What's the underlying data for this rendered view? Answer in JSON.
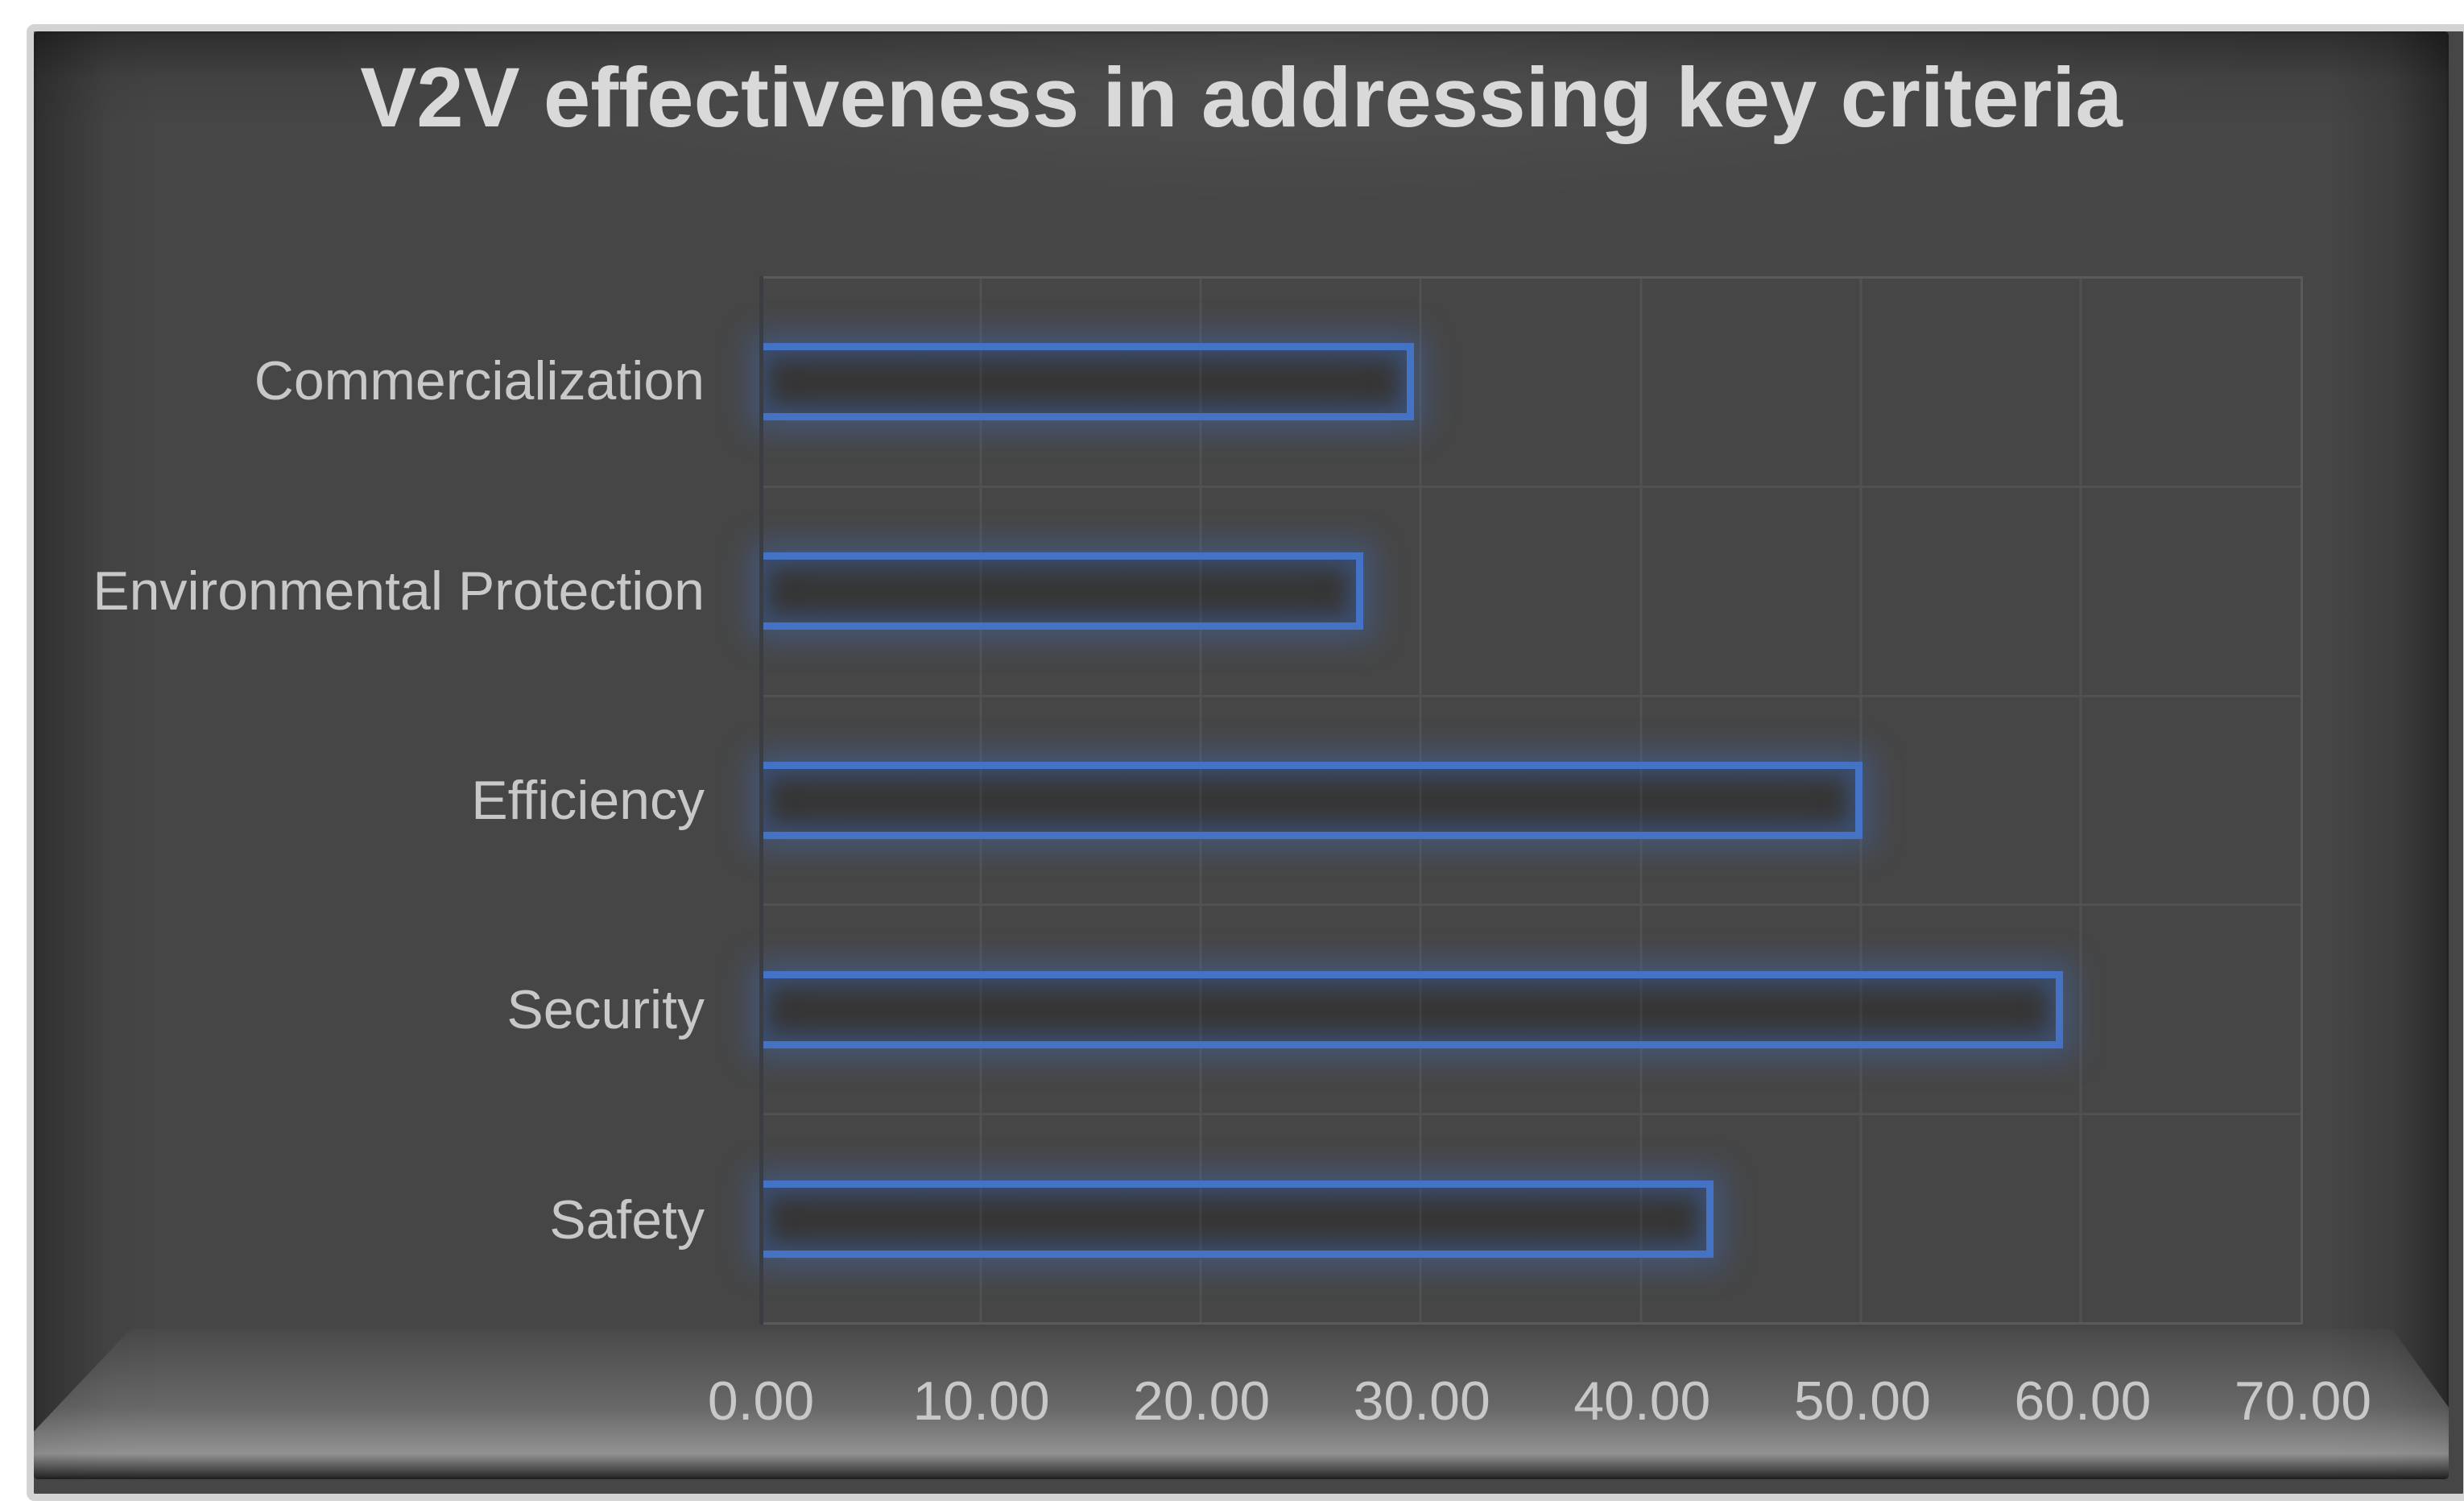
{
  "chart_data": {
    "type": "bar",
    "orientation": "horizontal",
    "title": "V2V effectiveness in addressing key criteria",
    "categories": [
      "Commercialization",
      "Environmental Protection",
      "Efficiency",
      "Security",
      "Safety"
    ],
    "values": [
      29.7,
      27.4,
      50.1,
      59.2,
      43.3
    ],
    "xlabel": "",
    "ylabel": "",
    "xlim": [
      0,
      70
    ],
    "x_tick_step": 10,
    "x_ticks": [
      "0.00",
      "10.00",
      "20.00",
      "30.00",
      "40.00",
      "50.00",
      "60.00",
      "70.00"
    ],
    "grid": true,
    "legend": false,
    "colors": {
      "bar_border": "#4472c4",
      "bar_glow": "rgba(68,114,196,0.40)",
      "chart_background": "#464646",
      "frame_ridge": "#d3d3d3",
      "gridline": "#515151",
      "plot_border": "#5a5a5a",
      "title_text": "#d9d9d9",
      "axis_text": "#c9c8c8"
    }
  }
}
